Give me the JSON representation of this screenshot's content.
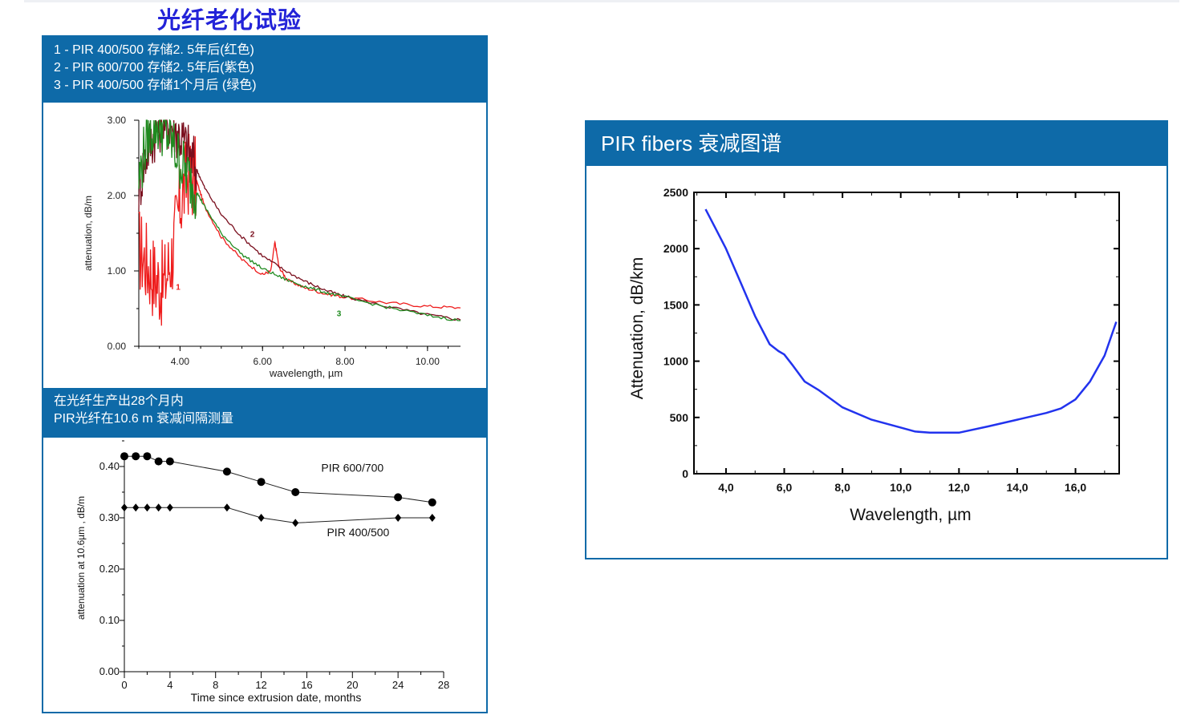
{
  "page": {
    "title": "光纤老化试验"
  },
  "left_panel": {
    "header_lines": [
      "1 - PIR 400/500 存储2. 5年后(红色)",
      "2 - PIR 600/700 存储2. 5年后(紫色)",
      "3 - PIR 400/500 存储1个月后 (绿色)"
    ],
    "middle_header_lines": [
      "在光纤生产出28个月内",
      "PIR光纤在10.6  m 衰减间隔测量"
    ]
  },
  "right_panel": {
    "header": "PIR fibers 衰减图谱"
  },
  "chart_data": [
    {
      "type": "line",
      "xlabel": "wavelength, µm",
      "ylabel": "attenuation, dB/m",
      "xlim": [
        3.0,
        10.8
      ],
      "ylim": [
        0.0,
        3.0
      ],
      "x_ticks": [
        "4.00",
        "6.00",
        "8.00",
        "10.00"
      ],
      "y_ticks": [
        "0.00",
        "1.00",
        "2.00",
        "3.00"
      ],
      "series": [
        {
          "name": "1",
          "color": "#ee1c1c",
          "x": [
            3.0,
            3.2,
            3.4,
            3.6,
            3.8,
            4.0,
            4.2,
            4.4,
            4.6,
            5.0,
            5.5,
            6.0,
            6.2,
            6.3,
            6.4,
            6.6,
            7.0,
            7.5,
            8.0,
            9.0,
            10.0,
            10.8
          ],
          "y": [
            1.3,
            1.1,
            0.9,
            0.8,
            1.2,
            1.9,
            2.3,
            2.2,
            1.85,
            1.45,
            1.15,
            0.95,
            1.0,
            1.38,
            1.05,
            0.88,
            0.78,
            0.7,
            0.65,
            0.58,
            0.53,
            0.51
          ]
        },
        {
          "name": "2",
          "color": "#7a0f1e",
          "x": [
            3.0,
            3.2,
            3.4,
            3.6,
            3.8,
            4.0,
            4.2,
            4.4,
            4.6,
            5.0,
            5.5,
            6.0,
            6.5,
            7.0,
            7.5,
            8.0,
            9.0,
            10.0,
            10.8
          ],
          "y": [
            2.1,
            2.6,
            2.85,
            3.0,
            2.95,
            2.8,
            2.6,
            2.35,
            2.1,
            1.75,
            1.45,
            1.2,
            1.02,
            0.87,
            0.75,
            0.66,
            0.53,
            0.42,
            0.35
          ]
        },
        {
          "name": "3",
          "color": "#1f8a1f",
          "x": [
            3.0,
            3.2,
            3.4,
            3.6,
            3.8,
            4.0,
            4.2,
            4.4,
            4.6,
            5.0,
            5.5,
            6.0,
            6.5,
            7.0,
            7.5,
            8.0,
            9.0,
            10.0,
            10.8
          ],
          "y": [
            2.2,
            2.8,
            2.95,
            2.9,
            2.7,
            2.45,
            2.25,
            2.05,
            1.85,
            1.5,
            1.22,
            1.03,
            0.9,
            0.8,
            0.72,
            0.65,
            0.52,
            0.41,
            0.34
          ]
        }
      ]
    },
    {
      "type": "line",
      "xlabel": "Time since extrusion date, months",
      "ylabel": "attenuation at 10.6µm , dB/m",
      "xlim": [
        0,
        28
      ],
      "ylim": [
        0.0,
        0.4
      ],
      "x_ticks": [
        "0",
        "4",
        "8",
        "12",
        "16",
        "20",
        "24",
        "28"
      ],
      "y_ticks": [
        "0.00",
        "0.10",
        "0.20",
        "0.30",
        "0.40"
      ],
      "series": [
        {
          "name": "PIR 600/700",
          "marker": "circle",
          "x": [
            0,
            1,
            2,
            3,
            4,
            9,
            12,
            15,
            24,
            27
          ],
          "y": [
            0.42,
            0.42,
            0.42,
            0.41,
            0.41,
            0.39,
            0.37,
            0.35,
            0.34,
            0.33
          ]
        },
        {
          "name": "PIR 400/500",
          "marker": "diamond",
          "x": [
            0,
            1,
            2,
            3,
            4,
            9,
            12,
            15,
            24,
            27
          ],
          "y": [
            0.32,
            0.32,
            0.32,
            0.32,
            0.32,
            0.32,
            0.3,
            0.29,
            0.3,
            0.3
          ]
        }
      ]
    },
    {
      "type": "line",
      "xlabel": "Wavelength, µm",
      "ylabel": "Attenuation, dB/km",
      "xlim": [
        2.9,
        17.5
      ],
      "ylim": [
        0,
        2500
      ],
      "x_ticks": [
        "4,0",
        "6,0",
        "8,0",
        "10,0",
        "12,0",
        "14,0",
        "16,0"
      ],
      "y_ticks": [
        "0",
        "500",
        "1000",
        "1500",
        "2000",
        "2500"
      ],
      "line_color": "#2233ee",
      "series": [
        {
          "x": [
            3.3,
            3.6,
            4.0,
            4.5,
            5.0,
            5.5,
            5.8,
            6.0,
            6.3,
            6.7,
            7.2,
            8.0,
            9.0,
            10.0,
            10.5,
            11.0,
            12.0,
            13.0,
            14.0,
            15.0,
            15.5,
            16.0,
            16.5,
            17.0,
            17.4
          ],
          "y": [
            2350,
            2200,
            2000,
            1700,
            1400,
            1150,
            1090,
            1060,
            960,
            820,
            740,
            590,
            480,
            410,
            375,
            365,
            365,
            420,
            480,
            540,
            580,
            660,
            820,
            1050,
            1350
          ]
        }
      ]
    }
  ]
}
